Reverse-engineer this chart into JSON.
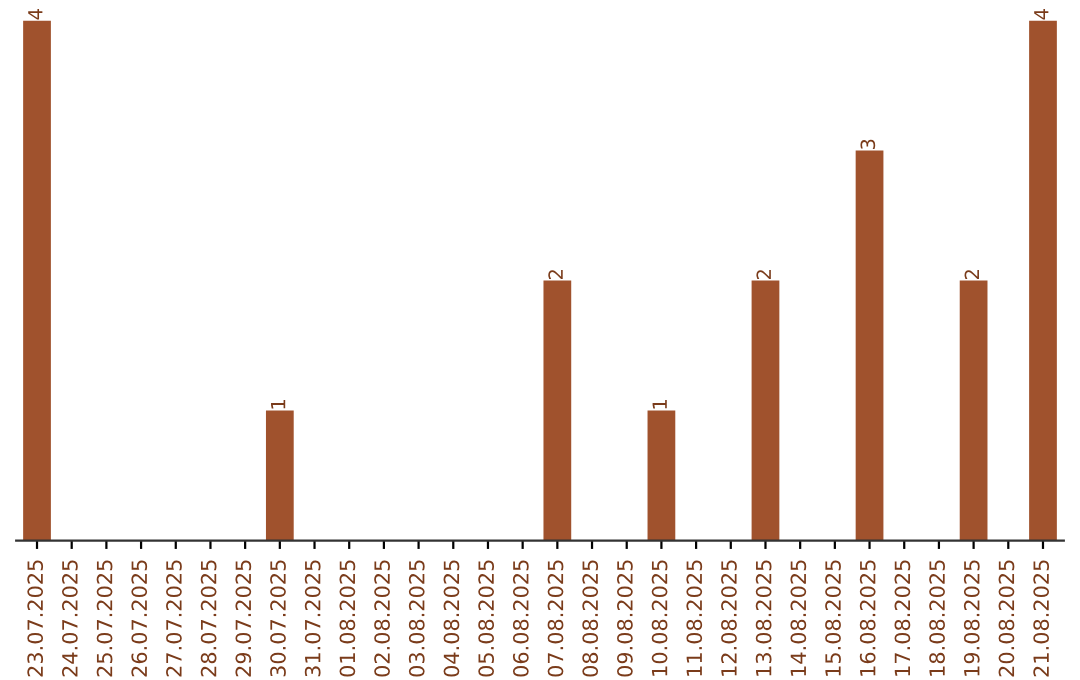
{
  "chart_data": {
    "type": "bar",
    "categories": [
      "23.07.2025",
      "24.07.2025",
      "25.07.2025",
      "26.07.2025",
      "27.07.2025",
      "28.07.2025",
      "29.07.2025",
      "30.07.2025",
      "31.07.2025",
      "01.08.2025",
      "02.08.2025",
      "03.08.2025",
      "04.08.2025",
      "05.08.2025",
      "06.08.2025",
      "07.08.2025",
      "08.08.2025",
      "09.08.2025",
      "10.08.2025",
      "11.08.2025",
      "12.08.2025",
      "13.08.2025",
      "14.08.2025",
      "15.08.2025",
      "16.08.2025",
      "17.08.2025",
      "18.08.2025",
      "19.08.2025",
      "20.08.2025",
      "21.08.2025"
    ],
    "values": [
      4,
      0,
      0,
      0,
      0,
      0,
      0,
      1,
      0,
      0,
      0,
      0,
      0,
      0,
      0,
      2,
      0,
      0,
      1,
      0,
      0,
      2,
      0,
      0,
      3,
      0,
      0,
      2,
      0,
      4
    ],
    "value_labels": [
      "4",
      null,
      null,
      null,
      null,
      null,
      null,
      "1",
      null,
      null,
      null,
      null,
      null,
      null,
      null,
      "2",
      null,
      null,
      "1",
      null,
      null,
      "2",
      null,
      null,
      "3",
      null,
      null,
      "2",
      null,
      "4"
    ],
    "color": "#a0522d",
    "tick_labels": "x",
    "grid": false,
    "legend": false
  }
}
